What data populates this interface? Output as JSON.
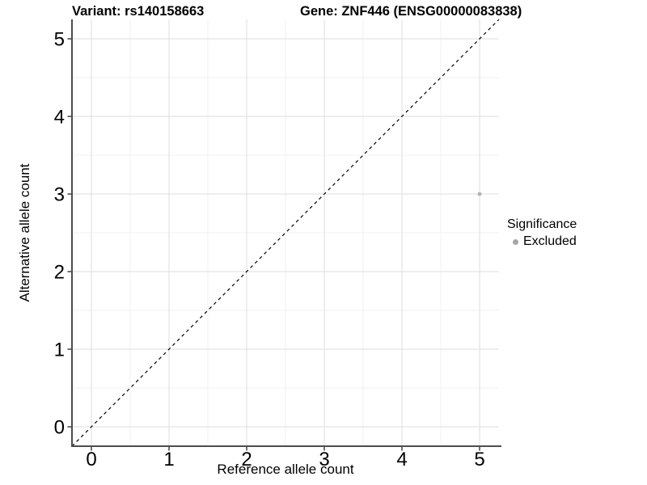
{
  "chart_data": {
    "type": "scatter",
    "title_left": "Variant: rs140158663",
    "title_right": "Gene: ZNF446 (ENSG00000083838)",
    "xlabel": "Reference allele count",
    "ylabel": "Alternative allele count",
    "xlim": [
      -0.25,
      5.25
    ],
    "ylim": [
      -0.25,
      5.25
    ],
    "x_ticks": [
      0,
      1,
      2,
      3,
      4,
      5
    ],
    "y_ticks": [
      0,
      1,
      2,
      3,
      4,
      5
    ],
    "x_minor_ticks": [
      0.5,
      1.5,
      2.5,
      3.5,
      4.5
    ],
    "y_minor_ticks": [
      0.5,
      1.5,
      2.5,
      3.5,
      4.5
    ],
    "grid": "major+minor",
    "series": [
      {
        "name": "Excluded",
        "color": "#b2b2b2",
        "points": [
          {
            "x": 5,
            "y": 3
          }
        ]
      }
    ],
    "reference_line": {
      "type": "identity y=x",
      "style": "dashed",
      "color": "#000000"
    },
    "legend": {
      "title": "Significance",
      "position": "right",
      "entries": [
        {
          "label": "Excluded",
          "color": "#a6a6a6"
        }
      ]
    },
    "colors": {
      "background": "#ffffff",
      "grid_major": "#e3e3e3",
      "grid_minor": "#f0f0f0",
      "axis_line": "#4d4d4d",
      "tick_text": "#000000"
    }
  }
}
